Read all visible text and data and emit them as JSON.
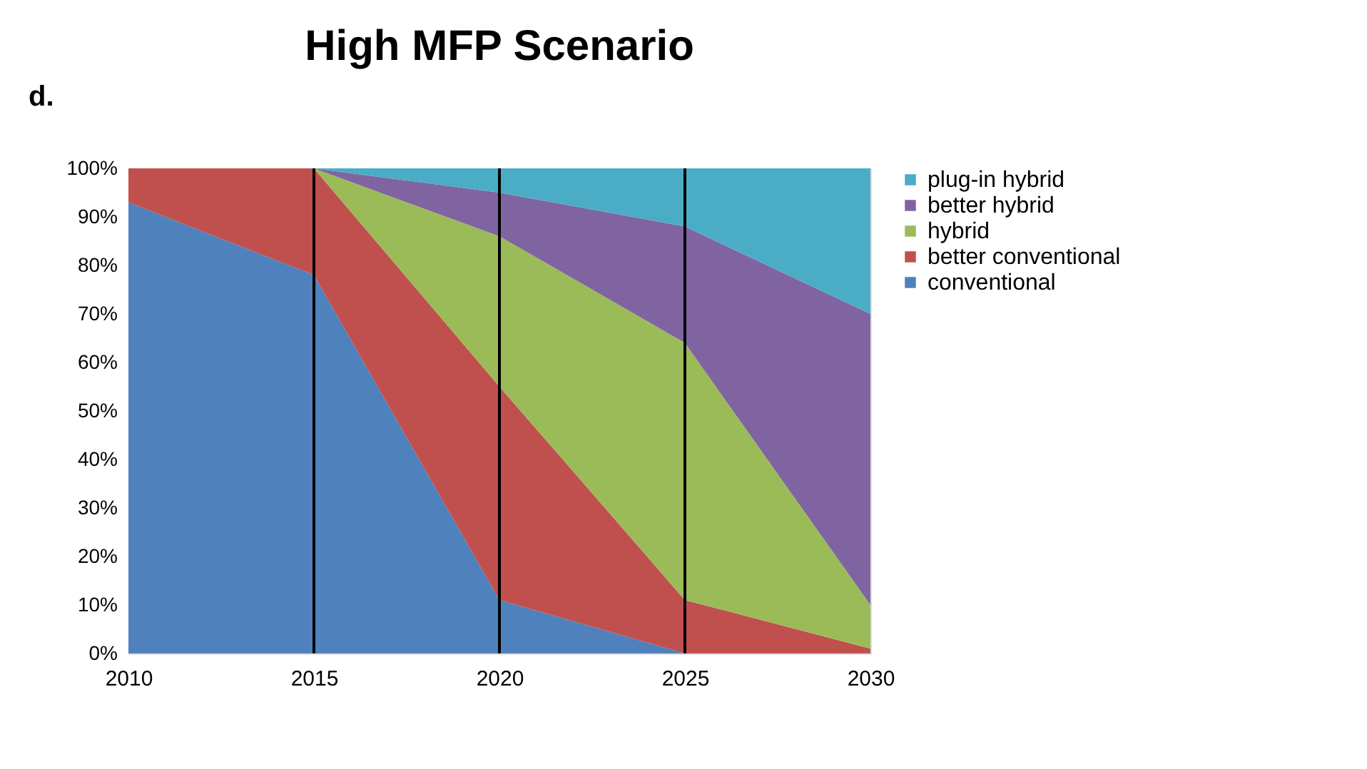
{
  "chart_data": {
    "type": "area",
    "stacked": true,
    "title": "High MFP Scenario",
    "annotations": [
      "d."
    ],
    "x": [
      2010,
      2015,
      2020,
      2025,
      2030
    ],
    "series": [
      {
        "name": "conventional",
        "color": "#4f81bd",
        "values": [
          93,
          78,
          11,
          0,
          0
        ]
      },
      {
        "name": "better conventional",
        "color": "#c0504d",
        "values": [
          7,
          22,
          44,
          11,
          1
        ]
      },
      {
        "name": "hybrid",
        "color": "#9bbb59",
        "values": [
          0,
          0,
          31,
          53,
          9
        ]
      },
      {
        "name": "better hybrid",
        "color": "#8064a2",
        "values": [
          0,
          0,
          9,
          24,
          60
        ]
      },
      {
        "name": "plug-in hybrid",
        "color": "#4bacc6",
        "values": [
          0,
          0,
          5,
          12,
          30
        ]
      }
    ],
    "xlim": [
      2010,
      2030
    ],
    "xticks": [
      2010,
      2015,
      2020,
      2025,
      2030
    ],
    "ylim": [
      0,
      100
    ],
    "yticks": [
      {
        "value": 0,
        "label": "0%"
      },
      {
        "value": 10,
        "label": "10%"
      },
      {
        "value": 20,
        "label": "20%"
      },
      {
        "value": 30,
        "label": "30%"
      },
      {
        "value": 40,
        "label": "40%"
      },
      {
        "value": 50,
        "label": "50%"
      },
      {
        "value": 60,
        "label": "60%"
      },
      {
        "value": 70,
        "label": "70%"
      },
      {
        "value": 80,
        "label": "80%"
      },
      {
        "value": 90,
        "label": "90%"
      },
      {
        "value": 100,
        "label": "100%"
      }
    ],
    "ref_lines": [
      {
        "axis": "x",
        "value": 2015,
        "color": "#000000"
      },
      {
        "axis": "x",
        "value": 2020,
        "color": "#000000"
      },
      {
        "axis": "x",
        "value": 2025,
        "color": "#000000"
      }
    ],
    "grid": false,
    "legend": "right"
  }
}
